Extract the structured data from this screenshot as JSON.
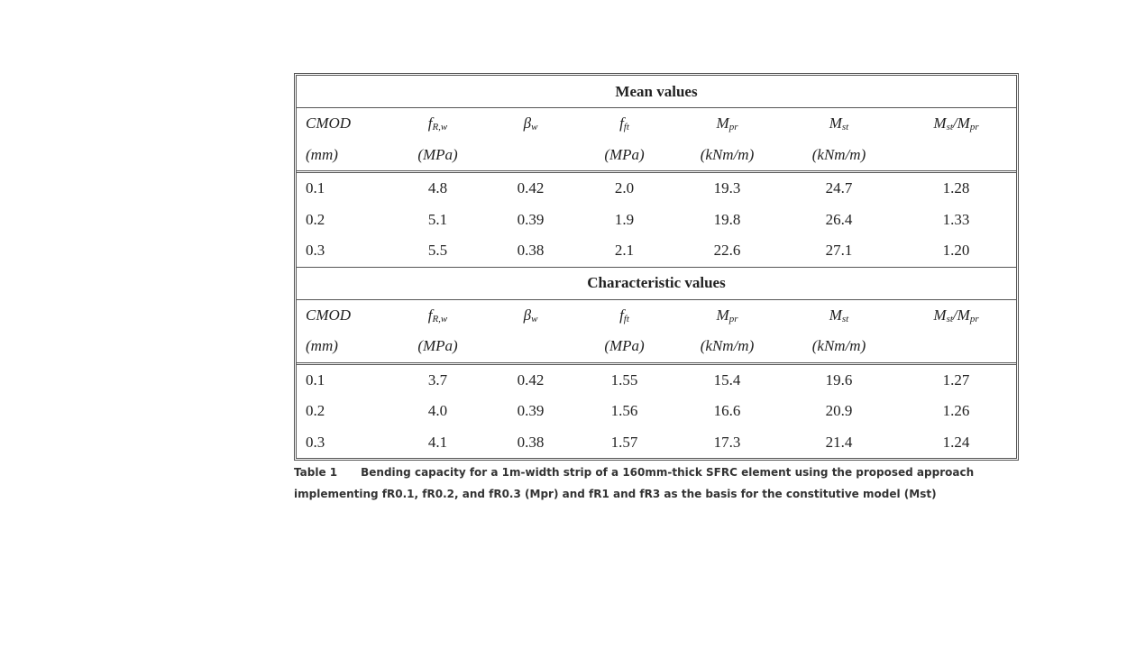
{
  "table": {
    "sections": [
      {
        "title": "Mean values",
        "columns": [
          {
            "name": [
              {
                "text": "CMOD"
              }
            ],
            "unit": "(mm)"
          },
          {
            "name": [
              {
                "text": "f"
              },
              {
                "sub": "R,w"
              }
            ],
            "unit": "(MPa)"
          },
          {
            "name": [
              {
                "text": "β"
              },
              {
                "sub": "w"
              }
            ]
          },
          {
            "name": [
              {
                "text": "f"
              },
              {
                "sub": "ft"
              }
            ],
            "unit": "(MPa)"
          },
          {
            "name": [
              {
                "text": "M"
              },
              {
                "sub": "pr"
              }
            ],
            "unit": "(kNm/m)"
          },
          {
            "name": [
              {
                "text": "M"
              },
              {
                "sub": "st"
              }
            ],
            "unit": "(kNm/m)"
          },
          {
            "name": [
              {
                "text": "M"
              },
              {
                "sub": "st"
              },
              {
                "text": "/M"
              },
              {
                "sub": "pr"
              }
            ]
          }
        ],
        "rows": [
          [
            "0.1",
            "4.8",
            "0.42",
            "2.0",
            "19.3",
            "24.7",
            "1.28"
          ],
          [
            "0.2",
            "5.1",
            "0.39",
            "1.9",
            "19.8",
            "26.4",
            "1.33"
          ],
          [
            "0.3",
            "5.5",
            "0.38",
            "2.1",
            "22.6",
            "27.1",
            "1.20"
          ]
        ]
      },
      {
        "title": "Characteristic values",
        "columns": [
          {
            "name": [
              {
                "text": "CMOD"
              }
            ],
            "unit": "(mm)"
          },
          {
            "name": [
              {
                "text": "f"
              },
              {
                "sub": "R,w"
              }
            ],
            "unit": "(MPa)"
          },
          {
            "name": [
              {
                "text": "β"
              },
              {
                "sub": "w"
              }
            ]
          },
          {
            "name": [
              {
                "text": "f"
              },
              {
                "sub": "ft"
              }
            ],
            "unit": "(MPa)"
          },
          {
            "name": [
              {
                "text": "M"
              },
              {
                "sub": "pr"
              }
            ],
            "unit": "(kNm/m)"
          },
          {
            "name": [
              {
                "text": "M"
              },
              {
                "sub": "st"
              }
            ],
            "unit": "(kNm/m)"
          },
          {
            "name": [
              {
                "text": "M"
              },
              {
                "sub": "st"
              },
              {
                "text": "/M"
              },
              {
                "sub": "pr"
              }
            ]
          }
        ],
        "rows": [
          [
            "0.1",
            "3.7",
            "0.42",
            "1.55",
            "15.4",
            "19.6",
            "1.27"
          ],
          [
            "0.2",
            "4.0",
            "0.39",
            "1.56",
            "16.6",
            "20.9",
            "1.26"
          ],
          [
            "0.3",
            "4.1",
            "0.38",
            "1.57",
            "17.3",
            "21.4",
            "1.24"
          ]
        ]
      }
    ]
  },
  "caption": {
    "label": "Table 1",
    "text": "Bending capacity for a 1m-width strip of a 160mm-thick SFRC element using the proposed approach implementing fR0.1, fR0.2, and fR0.3 (Mpr) and fR1 and fR3 as the basis for the constitutive model (Mst)"
  }
}
